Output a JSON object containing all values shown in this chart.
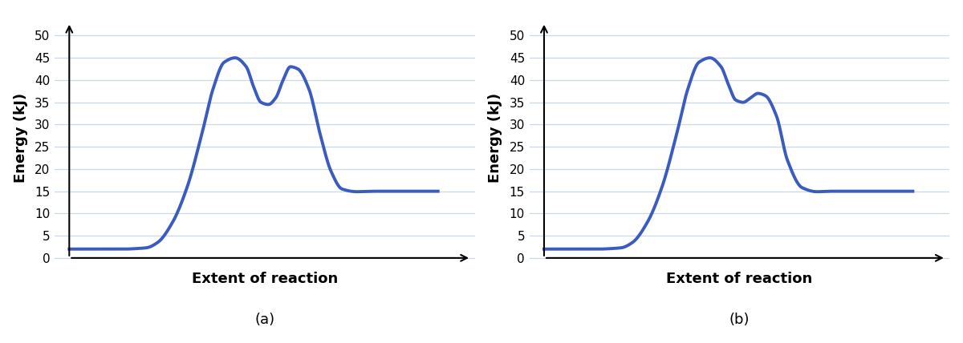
{
  "curve_color": "#3a5bbf",
  "curve_linewidth": 2.8,
  "background_color": "#ffffff",
  "grid_color": "#c8d8e8",
  "ylim": [
    -1,
    55
  ],
  "yticks": [
    0,
    5,
    10,
    15,
    20,
    25,
    30,
    35,
    40,
    45,
    50
  ],
  "xlabel": "Extent of reaction",
  "ylabel": "Energy (kJ)",
  "xlabel_fontsize": 13,
  "ylabel_fontsize": 13,
  "xlabel_fontweight": "bold",
  "ylabel_fontweight": "bold",
  "label_a": "(a)",
  "label_b": "(b)",
  "label_fontsize": 13,
  "plot_a_x": [
    0.0,
    0.05,
    0.1,
    0.15,
    0.18,
    0.21,
    0.24,
    0.28,
    0.32,
    0.36,
    0.39,
    0.42,
    0.45,
    0.48,
    0.5,
    0.52,
    0.54,
    0.56,
    0.58,
    0.6,
    0.62,
    0.65,
    0.68,
    0.71,
    0.74,
    0.78,
    0.82,
    0.88,
    0.94,
    1.0
  ],
  "plot_a_y": [
    2.0,
    2.0,
    2.0,
    2.0,
    2.1,
    2.3,
    3.5,
    8.0,
    16.0,
    28.0,
    38.0,
    44.0,
    45.0,
    43.0,
    38.5,
    35.0,
    34.5,
    36.0,
    40.0,
    43.0,
    42.5,
    38.0,
    28.0,
    19.5,
    15.5,
    14.9,
    15.0,
    15.0,
    15.0,
    15.0
  ],
  "plot_b_x": [
    0.0,
    0.05,
    0.1,
    0.15,
    0.18,
    0.21,
    0.24,
    0.28,
    0.32,
    0.36,
    0.39,
    0.42,
    0.45,
    0.48,
    0.5,
    0.52,
    0.54,
    0.56,
    0.58,
    0.6,
    0.63,
    0.66,
    0.7,
    0.74,
    0.78,
    0.83,
    0.88,
    0.94,
    1.0
  ],
  "plot_b_y": [
    2.0,
    2.0,
    2.0,
    2.0,
    2.1,
    2.3,
    3.5,
    8.0,
    16.0,
    28.0,
    38.0,
    44.0,
    45.0,
    43.0,
    39.0,
    35.5,
    35.0,
    36.0,
    37.0,
    36.5,
    32.0,
    22.0,
    15.8,
    14.9,
    15.0,
    15.0,
    15.0,
    15.0,
    15.0
  ],
  "arrow_color": "#000000",
  "tick_fontsize": 11,
  "xlim": [
    -0.04,
    1.1
  ]
}
